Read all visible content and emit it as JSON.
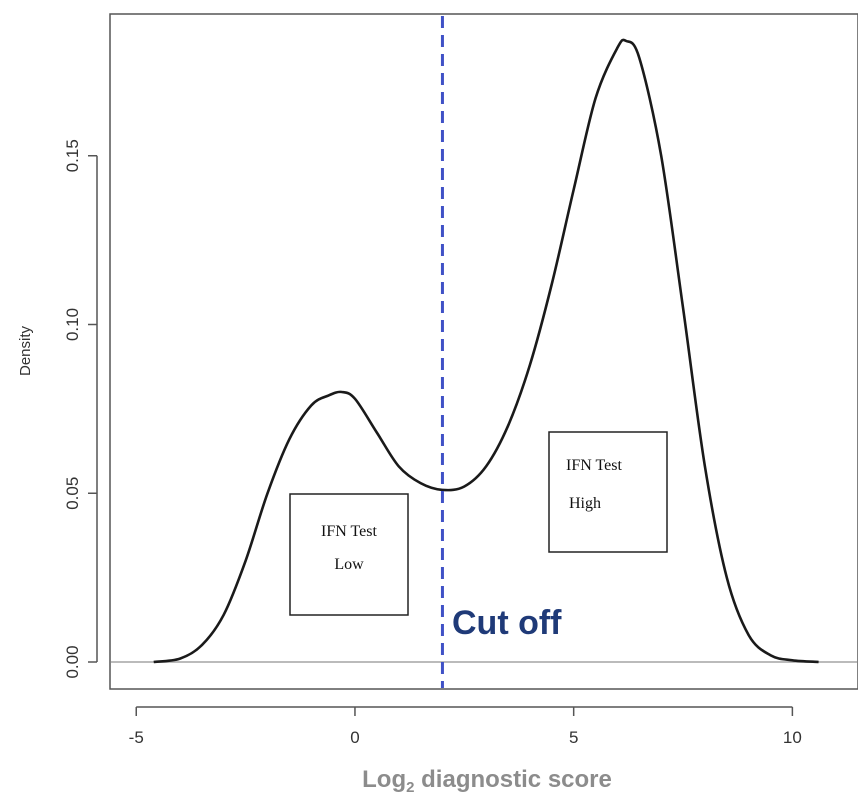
{
  "chart_data": {
    "type": "line",
    "title": "",
    "xlabel_main": "Log",
    "xlabel_sub": "2",
    "xlabel_rest": " diagnostic score",
    "ylabel": "Density",
    "xlim": [
      -5.6,
      11.5
    ],
    "ylim": [
      -0.008,
      0.192
    ],
    "x_ticks": [
      -5,
      0,
      5,
      10
    ],
    "x_tick_labels": [
      "-5",
      "0",
      "5",
      "10"
    ],
    "y_ticks": [
      0.0,
      0.05,
      0.1,
      0.15
    ],
    "y_tick_labels": [
      "0.00",
      "0.05",
      "0.10",
      "0.15"
    ],
    "series": [
      {
        "color": "#1a1a1a",
        "x": [
          -4.6,
          -4.0,
          -3.5,
          -3.0,
          -2.5,
          -2.0,
          -1.5,
          -1.0,
          -0.6,
          -0.3,
          0.0,
          0.5,
          1.0,
          1.5,
          2.0,
          2.5,
          3.0,
          3.5,
          4.0,
          4.5,
          5.0,
          5.5,
          6.0,
          6.2,
          6.5,
          7.0,
          7.5,
          8.0,
          8.5,
          9.0,
          9.5,
          10.0,
          10.6
        ],
        "y": [
          0.0,
          0.001,
          0.005,
          0.014,
          0.03,
          0.05,
          0.066,
          0.076,
          0.079,
          0.08,
          0.078,
          0.068,
          0.058,
          0.053,
          0.051,
          0.052,
          0.058,
          0.07,
          0.088,
          0.112,
          0.14,
          0.167,
          0.182,
          0.184,
          0.179,
          0.15,
          0.105,
          0.058,
          0.025,
          0.008,
          0.002,
          0.0005,
          0.0
        ]
      }
    ],
    "baseline": {
      "y": 0,
      "color": "#bbbbbb"
    },
    "cutoff": {
      "x": 2.0,
      "label": "Cut off",
      "color": "#3f51c6",
      "label_color": "#1f3a78"
    },
    "annotations": [
      {
        "lines": [
          "IFN Test",
          "Low"
        ]
      },
      {
        "lines": [
          "IFN Test",
          "High"
        ]
      }
    ],
    "grid": false,
    "legend": "none"
  }
}
